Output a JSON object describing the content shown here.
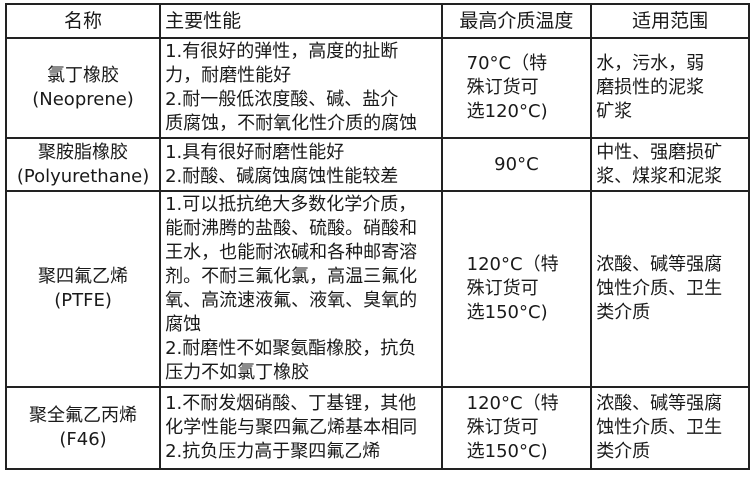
{
  "headers": [
    "名称",
    "主要性能",
    "最高介质温度",
    "适用范围"
  ],
  "rows": [
    {
      "name": [
        "氯丁橡胶",
        "(Neoprene)"
      ],
      "performance": [
        "1.有很好的弹性，高度的扯断",
        "力，耐磨性能好",
        "2.耐一般低浓度酸、碱、盐介",
        "质腐蚀，不耐氧化性介质的腐蚀"
      ],
      "temperature": [
        "70°C（特",
        "殊订货可",
        "选120°C)"
      ],
      "application": [
        "水，污水，弱",
        "磨损性的泥浆",
        "矿浆"
      ]
    },
    {
      "name": [
        "聚胺脂橡胶",
        "(Polyurethane)"
      ],
      "performance": [
        "1.具有很好耐磨性能好",
        "2.耐酸、碱腐蚀腐蚀性能较差"
      ],
      "temperature": [
        "90°C"
      ],
      "application": [
        "中性、强磨损矿",
        "浆、煤浆和泥浆"
      ]
    },
    {
      "name": [
        "聚四氟乙烯",
        "(PTFE)"
      ],
      "performance": [
        "1.可以抵抗绝大多数化学介质，",
        "能耐沸腾的盐酸、硫酸。硝酸和",
        "王水，也能耐浓碱和各种邮寄溶",
        "剂。不耐三氟化氯，高温三氟化",
        "氧、高流速液氟、液氧、臭氧的",
        "腐蚀",
        "2.耐磨性不如聚氨酯橡胶，抗负",
        "压力不如氯丁橡胶"
      ],
      "temperature": [
        "120°C（特",
        "殊订货可",
        "选150°C)"
      ],
      "application": [
        "浓酸、碱等强腐",
        "蚀性介质、卫生",
        "类介质"
      ]
    },
    {
      "name": [
        "聚全氟乙丙烯",
        "(F46)"
      ],
      "performance": [
        "1.不耐发烟硝酸、丁基锂，其他",
        "化学性能与聚四氟乙烯基本相同",
        "2.抗负压力高于聚四氟乙烯"
      ],
      "temperature": [
        "120°C（特",
        "殊订货可",
        "选150°C)"
      ],
      "application": [
        "浓酸、碱等强腐",
        "蚀性介质、卫生",
        "类介质"
      ]
    }
  ]
}
